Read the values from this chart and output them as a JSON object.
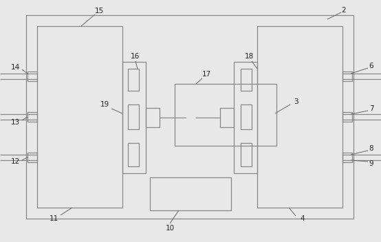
{
  "bg": "#e8e8e8",
  "lc": "#888888",
  "anno_c": "#666666",
  "fs": 7.5,
  "lw": 0.9,
  "fig_w": 5.54,
  "fig_h": 3.52,
  "dpi": 100
}
